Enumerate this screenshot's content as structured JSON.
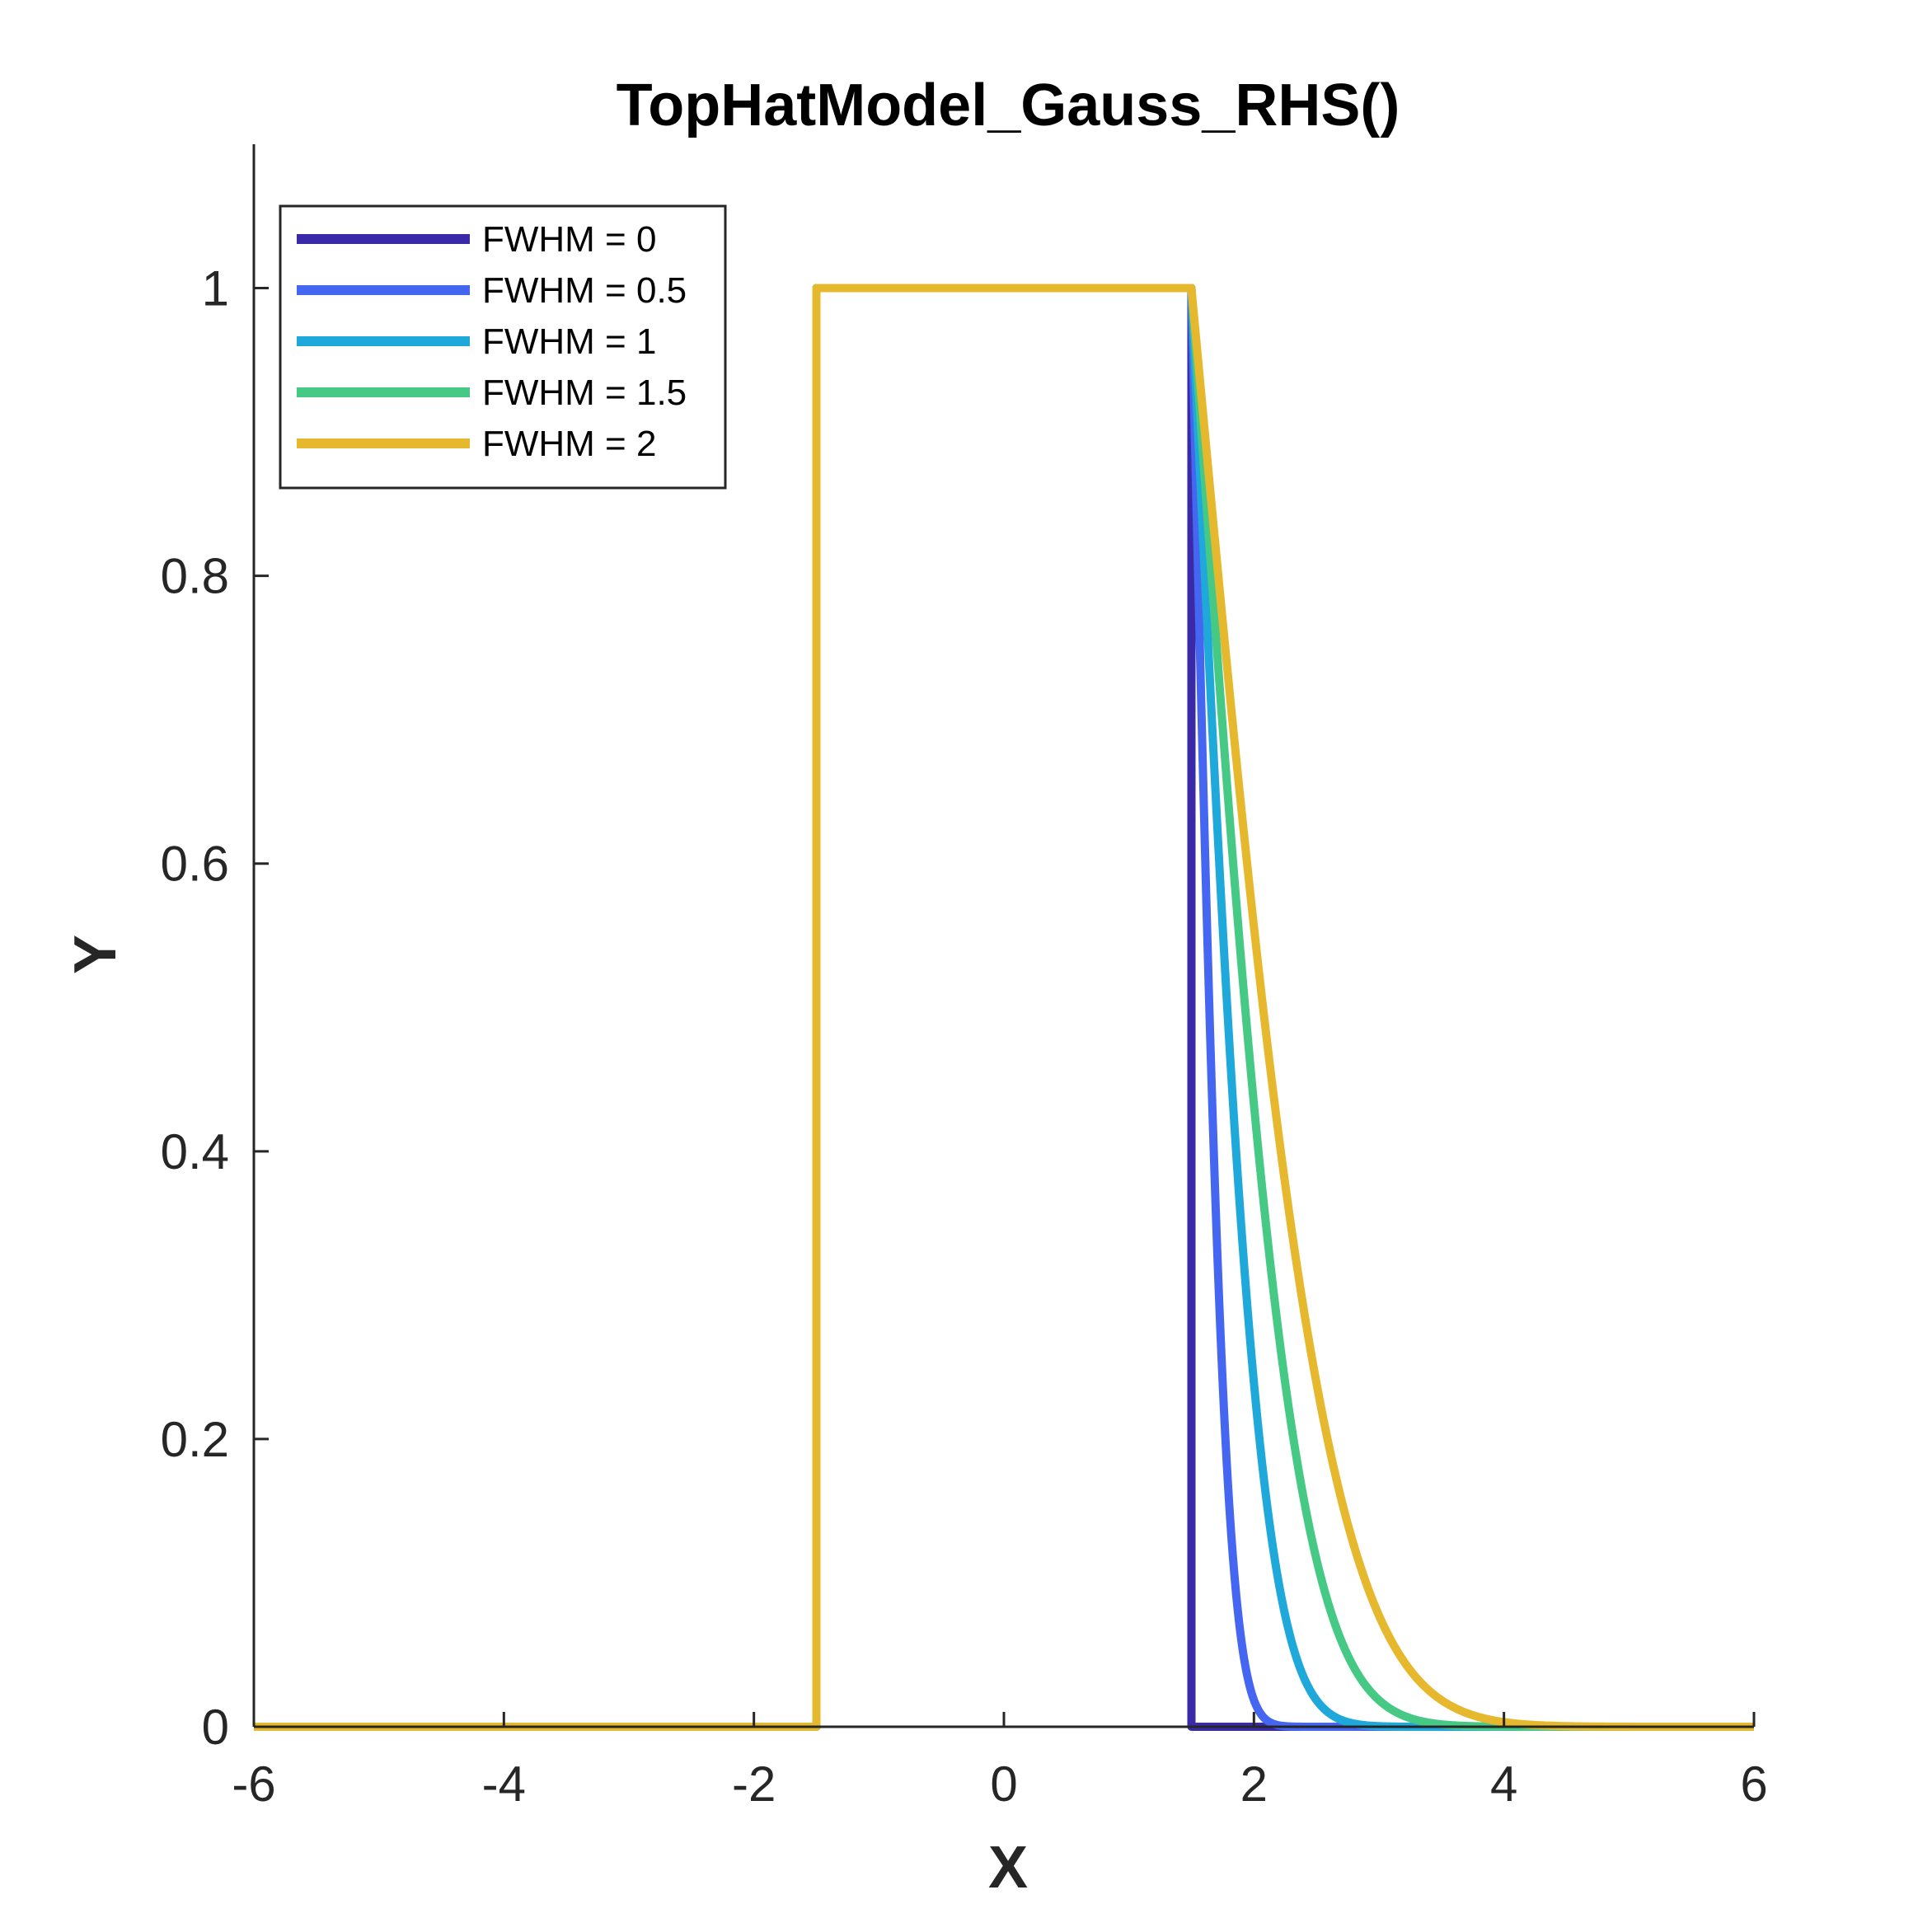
{
  "chart_data": {
    "type": "line",
    "title": "TopHatModel_Gauss_RHS()",
    "xlabel": "X",
    "ylabel": "Y",
    "xlim": [
      -6,
      6
    ],
    "ylim": [
      0,
      1.1
    ],
    "xticks": [
      -6,
      -4,
      -2,
      0,
      2,
      4,
      6
    ],
    "yticks": [
      0,
      0.2,
      0.4,
      0.6,
      0.8,
      1
    ],
    "xtick_labels": [
      "-6",
      "-4",
      "-2",
      "0",
      "2",
      "4",
      "6"
    ],
    "ytick_labels": [
      "0",
      "0.2",
      "0.4",
      "0.6",
      "0.8",
      "1"
    ],
    "grid": false,
    "legend_position": "top-left",
    "top_hat": {
      "left_edge": -1.5,
      "right_edge": 1.5,
      "height": 1
    },
    "series": [
      {
        "name": "FWHM = 0",
        "fwhm": 0,
        "color": "#3B2AA8"
      },
      {
        "name": "FWHM = 0.5",
        "fwhm": 0.5,
        "color": "#4466F0"
      },
      {
        "name": "FWHM = 1",
        "fwhm": 1,
        "color": "#1FA8DA"
      },
      {
        "name": "FWHM = 1.5",
        "fwhm": 1.5,
        "color": "#45C985"
      },
      {
        "name": "FWHM = 2",
        "fwhm": 2,
        "color": "#E6B82E"
      }
    ]
  }
}
